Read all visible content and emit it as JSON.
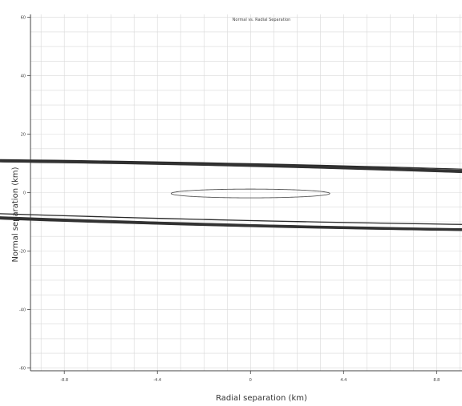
{
  "chart_data": {
    "type": "line",
    "title": "Normal vs. Radial Separation",
    "xlabel": "Radial separation (km)",
    "ylabel": "Normal separation (km)",
    "xlim": [
      -10.4,
      10.0
    ],
    "ylim": [
      -61,
      61
    ],
    "x_ticks": [
      -8.8,
      -4.4,
      0,
      4.4,
      8.8
    ],
    "x_tick_labels": [
      "-8.8",
      "-4.4",
      "0",
      "4.4",
      "8.8"
    ],
    "y_ticks": [
      -60,
      -40,
      -20,
      0,
      20,
      40,
      60
    ],
    "y_tick_labels": [
      "-60",
      "-40",
      "-20",
      "0",
      "20",
      "40",
      "60"
    ],
    "grid": true,
    "series": [
      {
        "center": [
          -0.15,
          -1.35
        ],
        "rx": 10.15,
        "ry": 37.6,
        "tilt_deg": 79.38,
        "copies": 11,
        "drift": [
          0.1,
          0.06
        ],
        "color": "#333333"
      },
      {
        "center": [
          0.6,
          0.0
        ],
        "rx": 9.6,
        "ry": 40.9,
        "tilt_deg": 80.46,
        "copies": 2,
        "drift": [
          0.04,
          0.1
        ],
        "color": "#2a2a2a"
      },
      {
        "center": [
          0.0,
          -0.3
        ],
        "rx": 3.75,
        "ry": 1.5,
        "tilt_deg": 0,
        "copies": 1,
        "drift": [
          0,
          0
        ],
        "color": "#555555"
      }
    ]
  }
}
